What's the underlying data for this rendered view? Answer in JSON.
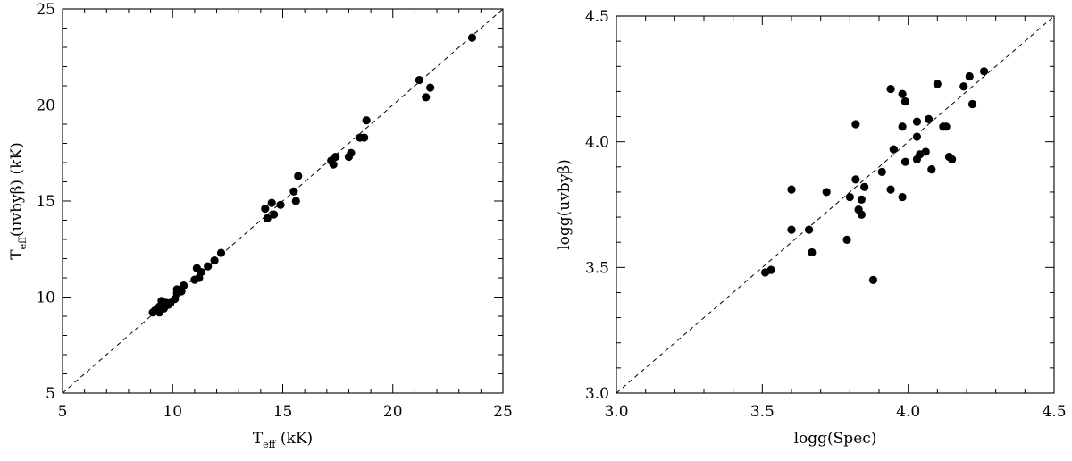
{
  "chart_data": [
    {
      "type": "scatter",
      "title": "",
      "xlabel": "T_eff (kK)",
      "ylabel": "T_eff(uvbyβ) (kK)",
      "xlim": [
        5,
        25
      ],
      "ylim": [
        5,
        25
      ],
      "xticks": [
        "5",
        "10",
        "15",
        "20",
        "25"
      ],
      "yticks": [
        "5",
        "10",
        "15",
        "20",
        "25"
      ],
      "reference_line": "y = x (dashed)",
      "grid": false,
      "points": [
        [
          9.1,
          9.2
        ],
        [
          9.2,
          9.3
        ],
        [
          9.3,
          9.4
        ],
        [
          9.4,
          9.2
        ],
        [
          9.4,
          9.5
        ],
        [
          9.5,
          9.8
        ],
        [
          9.6,
          9.4
        ],
        [
          9.7,
          9.7
        ],
        [
          9.8,
          9.6
        ],
        [
          9.9,
          9.7
        ],
        [
          10.1,
          9.9
        ],
        [
          10.2,
          10.4
        ],
        [
          10.2,
          10.2
        ],
        [
          10.4,
          10.3
        ],
        [
          10.5,
          10.6
        ],
        [
          11.0,
          10.9
        ],
        [
          11.1,
          11.5
        ],
        [
          11.2,
          11.0
        ],
        [
          11.3,
          11.3
        ],
        [
          11.6,
          11.6
        ],
        [
          11.9,
          11.9
        ],
        [
          12.2,
          12.3
        ],
        [
          14.2,
          14.6
        ],
        [
          14.3,
          14.1
        ],
        [
          14.5,
          14.9
        ],
        [
          14.6,
          14.3
        ],
        [
          14.9,
          14.8
        ],
        [
          15.5,
          15.5
        ],
        [
          15.6,
          15.0
        ],
        [
          15.7,
          16.3
        ],
        [
          17.2,
          17.1
        ],
        [
          17.3,
          16.9
        ],
        [
          17.4,
          17.3
        ],
        [
          18.0,
          17.3
        ],
        [
          18.1,
          17.5
        ],
        [
          18.5,
          18.3
        ],
        [
          18.7,
          18.3
        ],
        [
          18.8,
          19.2
        ],
        [
          21.2,
          21.3
        ],
        [
          21.5,
          20.4
        ],
        [
          21.7,
          20.9
        ],
        [
          23.6,
          23.5
        ]
      ]
    },
    {
      "type": "scatter",
      "title": "",
      "xlabel": "logg(Spec)",
      "ylabel": "logg(uvbyβ)",
      "xlim": [
        3.0,
        4.5
      ],
      "ylim": [
        3.0,
        4.5
      ],
      "xticks": [
        "3.0",
        "3.5",
        "4.0",
        "4.5"
      ],
      "yticks": [
        "3.0",
        "3.5",
        "4.0",
        "4.5"
      ],
      "reference_line": "y = x (dashed)",
      "grid": false,
      "points": [
        [
          3.51,
          3.48
        ],
        [
          3.53,
          3.49
        ],
        [
          3.6,
          3.81
        ],
        [
          3.6,
          3.65
        ],
        [
          3.66,
          3.65
        ],
        [
          3.67,
          3.56
        ],
        [
          3.72,
          3.8
        ],
        [
          3.79,
          3.61
        ],
        [
          3.8,
          3.78
        ],
        [
          3.82,
          3.85
        ],
        [
          3.82,
          4.07
        ],
        [
          3.83,
          3.73
        ],
        [
          3.84,
          3.77
        ],
        [
          3.84,
          3.71
        ],
        [
          3.85,
          3.82
        ],
        [
          3.88,
          3.45
        ],
        [
          3.91,
          3.88
        ],
        [
          3.94,
          3.81
        ],
        [
          3.94,
          4.21
        ],
        [
          3.95,
          3.97
        ],
        [
          3.98,
          3.78
        ],
        [
          3.98,
          4.06
        ],
        [
          3.98,
          4.19
        ],
        [
          3.99,
          4.16
        ],
        [
          3.99,
          3.92
        ],
        [
          4.03,
          3.93
        ],
        [
          4.03,
          4.02
        ],
        [
          4.03,
          4.08
        ],
        [
          4.04,
          3.95
        ],
        [
          4.06,
          3.96
        ],
        [
          4.07,
          4.09
        ],
        [
          4.08,
          3.89
        ],
        [
          4.1,
          4.23
        ],
        [
          4.12,
          4.06
        ],
        [
          4.13,
          4.06
        ],
        [
          4.14,
          3.94
        ],
        [
          4.15,
          3.93
        ],
        [
          4.19,
          4.22
        ],
        [
          4.21,
          4.26
        ],
        [
          4.22,
          4.15
        ],
        [
          4.26,
          4.28
        ]
      ]
    }
  ]
}
